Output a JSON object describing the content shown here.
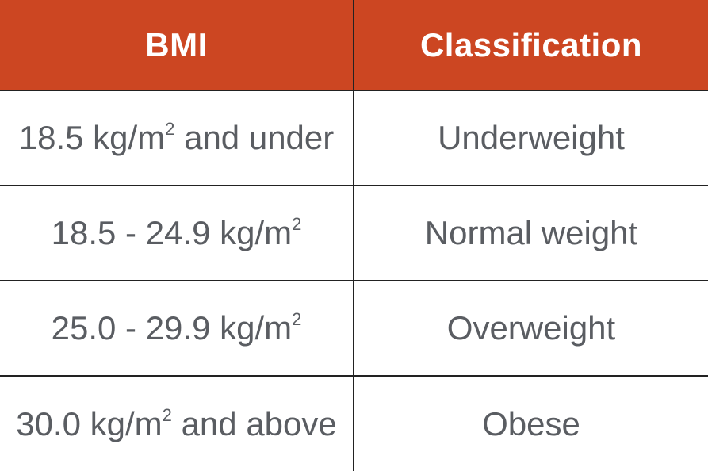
{
  "table": {
    "headers": [
      "BMI",
      "Classification"
    ],
    "rows": [
      {
        "bmi_pre": "18.5 kg/m",
        "bmi_sup": "2",
        "bmi_post": " and under",
        "classification": "Underweight"
      },
      {
        "bmi_pre": "18.5 - 24.9 kg/m",
        "bmi_sup": "2",
        "bmi_post": "",
        "classification": "Normal weight"
      },
      {
        "bmi_pre": "25.0 - 29.9 kg/m",
        "bmi_sup": "2",
        "bmi_post": "",
        "classification": "Overweight"
      },
      {
        "bmi_pre": "30.0 kg/m",
        "bmi_sup": "2",
        "bmi_post": " and above",
        "classification": "Obese"
      }
    ]
  },
  "colors": {
    "header_bg": "#cc4622",
    "header_text": "#ffffff",
    "body_text": "#5a5d62",
    "grid": "#222222"
  }
}
